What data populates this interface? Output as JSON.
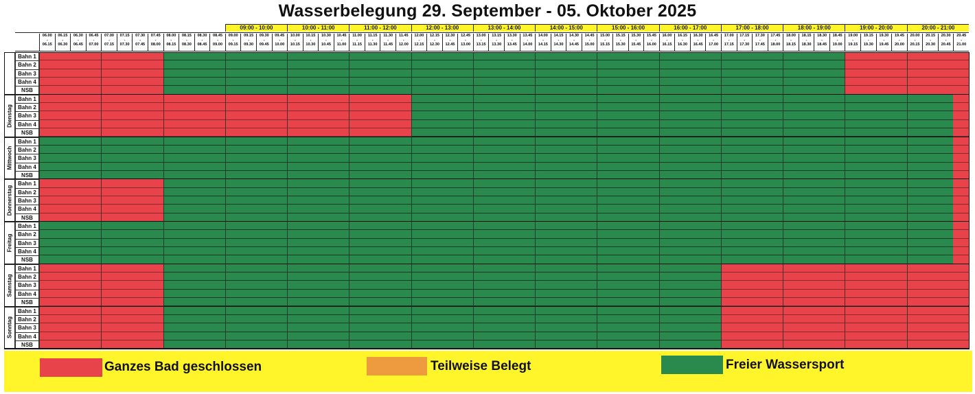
{
  "title": "Wasserbelegung 29. September - 05. Oktober 2025",
  "hour_ranges": [
    "09:00 - 10:00",
    "10:00 - 11:00",
    "11:00 - 12:00",
    "12:00 - 13:00",
    "13:00 - 14:00",
    "14:00 - 15:00",
    "15:00 - 16:00",
    "16:00 - 17:00",
    "17:00 - 18:00",
    "18:00 - 19:00",
    "19:00 - 20:00",
    "20:00 - 21:00"
  ],
  "slot_starts": [
    "06.00",
    "06.15",
    "06.30",
    "06.45",
    "07.00",
    "07.15",
    "07.30",
    "07.45",
    "08.00",
    "08.15",
    "08.30",
    "08.45",
    "09.00",
    "09.15",
    "09.30",
    "09.45",
    "10.00",
    "10.15",
    "10.30",
    "10.45",
    "11.00",
    "11.15",
    "11.30",
    "11.45",
    "12.00",
    "12.15",
    "12.30",
    "12.45",
    "13.00",
    "13.15",
    "13.30",
    "13.45",
    "14.00",
    "14.15",
    "14.30",
    "14.45",
    "15.00",
    "15.15",
    "15.30",
    "15.45",
    "16.00",
    "16.15",
    "16.30",
    "16.45",
    "17.00",
    "17.15",
    "17.30",
    "17.45",
    "18.00",
    "18.15",
    "18.30",
    "18.45",
    "19.00",
    "19.15",
    "19.30",
    "19.45",
    "20.00",
    "20.15",
    "20.30",
    "20.45"
  ],
  "slot_ends": [
    "06.15",
    "06.30",
    "06.45",
    "07.00",
    "07.15",
    "07.30",
    "07.45",
    "08.00",
    "08.15",
    "08.30",
    "08.45",
    "09.00",
    "09.15",
    "09.30",
    "09.45",
    "10.00",
    "10.15",
    "10.30",
    "10.45",
    "11.00",
    "11.15",
    "11.30",
    "11.45",
    "12.00",
    "12.15",
    "12.30",
    "12.45",
    "13.00",
    "13.15",
    "13.30",
    "13.45",
    "14.00",
    "14.15",
    "14.30",
    "14.45",
    "15.00",
    "15.15",
    "15.30",
    "15.45",
    "16.00",
    "16.15",
    "16.30",
    "16.45",
    "17.00",
    "17.15",
    "17.30",
    "17.45",
    "18.00",
    "18.15",
    "18.30",
    "18.45",
    "19.00",
    "19.15",
    "19.30",
    "19.45",
    "20.00",
    "20.15",
    "20.30",
    "20.45",
    "21.00"
  ],
  "slot_separator": "-",
  "lanes": [
    "Bahn 1",
    "Bahn 2",
    "Bahn 3",
    "Bahn 4",
    "NSB"
  ],
  "days": [
    {
      "name": "",
      "closed": [
        [
          0,
          8
        ],
        [
          52,
          60
        ]
      ]
    },
    {
      "name": "Dienstag",
      "closed": [
        [
          0,
          24
        ],
        [
          59,
          60
        ]
      ]
    },
    {
      "name": "Mittwoch",
      "closed": [
        [
          59,
          60
        ]
      ]
    },
    {
      "name": "Donnerstag",
      "closed": [
        [
          0,
          8
        ],
        [
          59,
          60
        ]
      ]
    },
    {
      "name": "Freitag",
      "closed": [
        [
          59,
          60
        ]
      ]
    },
    {
      "name": "Samstag",
      "closed": [
        [
          0,
          8
        ],
        [
          44,
          60
        ]
      ]
    },
    {
      "name": "Sonntag",
      "closed": [
        [
          0,
          8
        ],
        [
          44,
          60
        ]
      ]
    }
  ],
  "colors": {
    "closed": "#e8434a",
    "partial": "#ee9a3e",
    "free": "#2a8a4e",
    "band": "#fff52a"
  },
  "legend": [
    {
      "label": "Ganzes Bad geschlossen",
      "color": "#e8434a"
    },
    {
      "label": "Teilweise Belegt",
      "color": "#ee9a3e"
    },
    {
      "label": "Freier Wassersport",
      "color": "#2a8a4e"
    }
  ]
}
